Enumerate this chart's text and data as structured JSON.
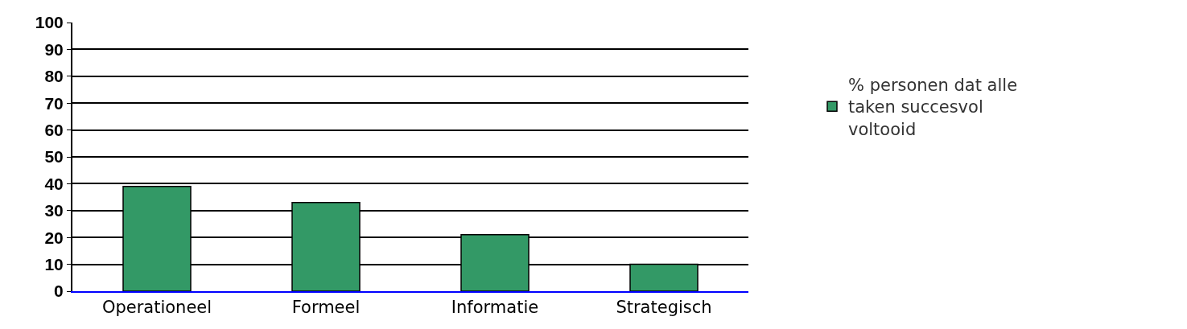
{
  "chart_data": {
    "type": "bar",
    "categories": [
      "Operationeel",
      "Formeel",
      "Informatie",
      "Strategisch"
    ],
    "series": [
      {
        "name": "% personen dat alle taken succesvol voltooid",
        "color": "#339966",
        "values": [
          39,
          33,
          21,
          10
        ]
      }
    ],
    "ylim": [
      0,
      100
    ],
    "yticks": [
      0,
      10,
      20,
      30,
      40,
      50,
      60,
      70,
      80,
      90,
      100
    ],
    "grid": "y",
    "legend": "right"
  }
}
